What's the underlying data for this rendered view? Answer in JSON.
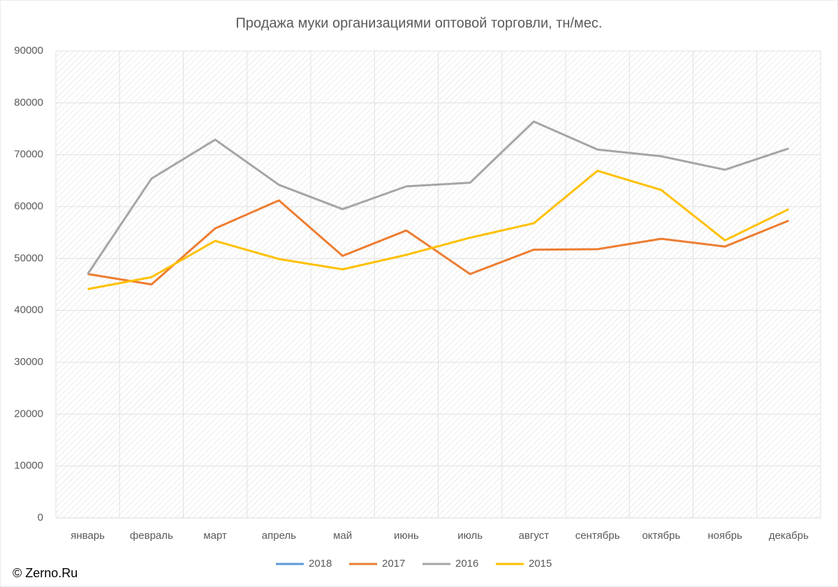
{
  "chart_data": {
    "type": "line",
    "title": "Продажа муки организациями оптовой торговли, тн/мес.",
    "source": "© Zerno.Ru",
    "categories": [
      "январь",
      "февраль",
      "март",
      "апрель",
      "май",
      "июнь",
      "июль",
      "август",
      "сентябрь",
      "октябрь",
      "ноябрь",
      "декабрь"
    ],
    "series": [
      {
        "name": "2018",
        "color": "#5b9bd5",
        "values": [
          null,
          null,
          null,
          null,
          null,
          null,
          null,
          null,
          null,
          null,
          null,
          null
        ]
      },
      {
        "name": "2017",
        "color": "#ed7d31",
        "values": [
          47000,
          45000,
          55800,
          61200,
          50500,
          55400,
          47000,
          51700,
          51800,
          53800,
          52300,
          57300
        ]
      },
      {
        "name": "2016",
        "color": "#a5a5a5",
        "values": [
          47000,
          65400,
          72900,
          64200,
          59500,
          63900,
          64600,
          76400,
          71000,
          69700,
          67100,
          71200
        ]
      },
      {
        "name": "2015",
        "color": "#ffc000",
        "values": [
          44100,
          46400,
          53400,
          49900,
          47900,
          50700,
          54000,
          56800,
          66900,
          63200,
          53500,
          59500
        ]
      }
    ],
    "ylim": [
      0,
      90000
    ],
    "yticks": [
      0,
      10000,
      20000,
      30000,
      40000,
      50000,
      60000,
      70000,
      80000,
      90000
    ],
    "grid": true,
    "legend": "bottom"
  }
}
